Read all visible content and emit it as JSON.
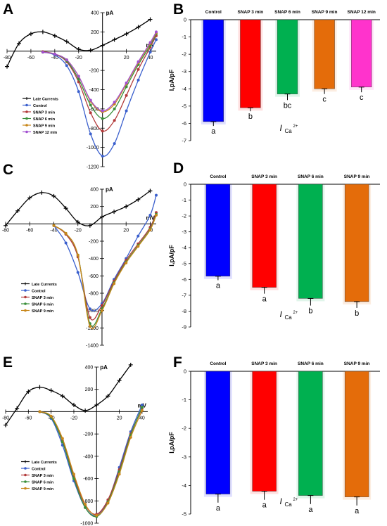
{
  "figure": {
    "panels": [
      {
        "letter": "A"
      },
      {
        "letter": "B"
      },
      {
        "letter": "C"
      },
      {
        "letter": "D"
      },
      {
        "letter": "E"
      },
      {
        "letter": "F"
      }
    ]
  },
  "colors": {
    "late": "#000000",
    "control": "#3a5fcd",
    "snap3": "#b23a3a",
    "snap6": "#3a8f3a",
    "snap9": "#c8871a",
    "snap12": "#a24fd0",
    "bar_control": "#0000ff",
    "bar_snap3": "#ff0000",
    "bar_snap6": "#00b050",
    "bar_snap9": "#e46c0a",
    "bar_snap12": "#ff33cc"
  },
  "chart_data": [
    {
      "panel": "A",
      "type": "line",
      "ylabel": "pA",
      "xlabel": "mV",
      "xlim": [
        -80,
        45
      ],
      "ylim": [
        -1200,
        400
      ],
      "xticks": [
        -80,
        -60,
        -40,
        -20,
        20,
        40
      ],
      "yticks": [
        400,
        200,
        -200,
        -400,
        -600,
        -800,
        -1000,
        -1200
      ],
      "legend": [
        "Late Currents",
        "Control",
        "SNAP 3 min",
        "SNAP 6 min",
        "SNAP 9 min",
        "SNAP 12 min"
      ],
      "series": [
        {
          "name": "Late Currents",
          "color_key": "late",
          "marker": "plus",
          "x": [
            -80,
            -70,
            -60,
            -50,
            -40,
            -30,
            -20,
            -10,
            0,
            10,
            20,
            30,
            40
          ],
          "y": [
            -160,
            80,
            180,
            200,
            160,
            100,
            20,
            10,
            60,
            120,
            180,
            250,
            330
          ]
        },
        {
          "name": "Control",
          "color_key": "control",
          "marker": "dot",
          "x": [
            -50,
            -40,
            -30,
            -20,
            -10,
            0,
            10,
            20,
            30,
            40,
            45
          ],
          "y": [
            -10,
            -40,
            -150,
            -420,
            -860,
            -1090,
            -960,
            -620,
            -300,
            -10,
            120
          ]
        },
        {
          "name": "SNAP 3 min",
          "color_key": "snap3",
          "marker": "dot",
          "x": [
            -50,
            -40,
            -30,
            -20,
            -10,
            0,
            10,
            20,
            30,
            40,
            45
          ],
          "y": [
            -5,
            -30,
            -110,
            -320,
            -640,
            -830,
            -720,
            -460,
            -190,
            40,
            160
          ]
        },
        {
          "name": "SNAP 6 min",
          "color_key": "snap6",
          "marker": "dot",
          "x": [
            -50,
            -40,
            -30,
            -20,
            -10,
            0,
            10,
            20,
            30,
            40,
            45
          ],
          "y": [
            -10,
            -30,
            -100,
            -290,
            -560,
            -700,
            -600,
            -370,
            -140,
            60,
            180
          ]
        },
        {
          "name": "SNAP 9 min",
          "color_key": "snap9",
          "marker": "dot",
          "x": [
            -50,
            -40,
            -30,
            -20,
            -10,
            0,
            10,
            20,
            30,
            40,
            45
          ],
          "y": [
            -10,
            -30,
            -90,
            -260,
            -520,
            -630,
            -550,
            -340,
            -120,
            80,
            190
          ]
        },
        {
          "name": "SNAP 12 min",
          "color_key": "snap12",
          "marker": "dot",
          "x": [
            -50,
            -40,
            -30,
            -20,
            -10,
            0,
            10,
            20,
            30,
            40,
            45
          ],
          "y": [
            -10,
            -30,
            -90,
            -260,
            -510,
            -620,
            -530,
            -330,
            -110,
            90,
            200
          ]
        }
      ]
    },
    {
      "panel": "B",
      "type": "bar",
      "ylabel": "I,pA/pF",
      "xlabel_main": "I",
      "xlabel_sub": "Ca",
      "xlabel_sup": "2+",
      "ylim": [
        -7,
        0
      ],
      "yticks": [
        0,
        -1,
        -2,
        -3,
        -4,
        -5,
        -6,
        -7
      ],
      "categories": [
        "Control",
        "SNAP 3 min",
        "SNAP 6 min",
        "SNAP 9 min",
        "SNAP 12 min"
      ],
      "values": [
        -5.9,
        -5.1,
        -4.3,
        -4.0,
        -3.9
      ],
      "errors": [
        0.25,
        0.2,
        0.35,
        0.3,
        0.3
      ],
      "sig": [
        "a",
        "b",
        "bc",
        "c",
        "c"
      ],
      "color_keys": [
        "bar_control",
        "bar_snap3",
        "bar_snap6",
        "bar_snap9",
        "bar_snap12"
      ]
    },
    {
      "panel": "C",
      "type": "line",
      "ylabel": "pA",
      "xlabel": "mV",
      "xlim": [
        -80,
        45
      ],
      "ylim": [
        -1400,
        400
      ],
      "xticks": [
        -80,
        -60,
        -40,
        -20,
        20,
        40
      ],
      "yticks": [
        400,
        200,
        -200,
        -400,
        -600,
        -800,
        -1000,
        -1200,
        -1400
      ],
      "legend": [
        "Late Currents",
        "Control",
        "SNAP 3 min",
        "SNAP 6 min",
        "SNAP 9 min"
      ],
      "series": [
        {
          "name": "Late Currents",
          "color_key": "late",
          "marker": "plus",
          "x": [
            -80,
            -70,
            -60,
            -50,
            -40,
            -30,
            -20,
            -10,
            0,
            10,
            20,
            30,
            40
          ],
          "y": [
            -20,
            150,
            300,
            360,
            320,
            180,
            20,
            -20,
            80,
            140,
            200,
            280,
            380
          ]
        },
        {
          "name": "Control",
          "color_key": "control",
          "marker": "dot",
          "x": [
            -40,
            -30,
            -20,
            -10,
            0,
            10,
            20,
            30,
            40,
            45
          ],
          "y": [
            -20,
            -220,
            -560,
            -980,
            -920,
            -640,
            -400,
            -140,
            100,
            330
          ]
        },
        {
          "name": "SNAP 3 min",
          "color_key": "snap3",
          "marker": "dot",
          "x": [
            -40,
            -30,
            -20,
            -10,
            0,
            10,
            20,
            30,
            40,
            45
          ],
          "y": [
            -20,
            -120,
            -380,
            -1080,
            -940,
            -660,
            -420,
            -230,
            -40,
            130
          ]
        },
        {
          "name": "SNAP 6 min",
          "color_key": "snap6",
          "marker": "dot",
          "x": [
            -40,
            -30,
            -20,
            -10,
            0,
            10,
            20,
            30,
            40,
            45
          ],
          "y": [
            -20,
            -110,
            -360,
            -1150,
            -980,
            -680,
            -440,
            -250,
            -60,
            110
          ]
        },
        {
          "name": "SNAP 9 min",
          "color_key": "snap9",
          "marker": "dot",
          "x": [
            -40,
            -30,
            -20,
            -10,
            0,
            10,
            20,
            30,
            40,
            45
          ],
          "y": [
            -20,
            -110,
            -360,
            -1180,
            -1000,
            -690,
            -450,
            -260,
            -70,
            100
          ]
        }
      ]
    },
    {
      "panel": "D",
      "type": "bar",
      "ylabel": "I,pA/pF",
      "xlabel_main": "I",
      "xlabel_sub": "Ca",
      "xlabel_sup": "2+",
      "ylim": [
        -9,
        0
      ],
      "yticks": [
        0,
        -1,
        -2,
        -3,
        -4,
        -5,
        -6,
        -7,
        -8,
        -9
      ],
      "categories": [
        "Control",
        "SNAP 3 min",
        "SNAP 6 min",
        "SNAP 9 min"
      ],
      "values": [
        -5.8,
        -6.5,
        -7.2,
        -7.4
      ],
      "errors": [
        0.25,
        0.4,
        0.45,
        0.4
      ],
      "sig": [
        "a",
        "a",
        "b",
        "b"
      ],
      "color_keys": [
        "bar_control",
        "bar_snap3",
        "bar_snap6",
        "bar_snap9"
      ]
    },
    {
      "panel": "E",
      "type": "line",
      "ylabel": "pA",
      "xlabel": "mV",
      "xlim": [
        -80,
        45
      ],
      "ylim": [
        -1000,
        400
      ],
      "xticks": [
        -80,
        -60,
        -40,
        -20,
        20,
        40
      ],
      "yticks": [
        400,
        200,
        -200,
        -400,
        -600,
        -800,
        -1000
      ],
      "legend": [
        "Late Currents",
        "Control",
        "SNAP 3 min",
        "SNAP 6 min",
        "SNAP 9 min"
      ],
      "series": [
        {
          "name": "Late Currents",
          "color_key": "late",
          "marker": "plus",
          "x": [
            -80,
            -70,
            -60,
            -50,
            -40,
            -30,
            -20,
            -10,
            0,
            10,
            20,
            30
          ],
          "y": [
            -120,
            30,
            180,
            220,
            190,
            140,
            60,
            10,
            60,
            140,
            280,
            420
          ]
        },
        {
          "name": "Control",
          "color_key": "control",
          "marker": "dot",
          "x": [
            -50,
            -40,
            -30,
            -20,
            -10,
            0,
            10,
            20,
            30,
            40
          ],
          "y": [
            0,
            -60,
            -300,
            -620,
            -860,
            -930,
            -800,
            -500,
            -180,
            60
          ]
        },
        {
          "name": "SNAP 3 min",
          "color_key": "snap3",
          "marker": "dot",
          "x": [
            -50,
            -40,
            -30,
            -20,
            -10,
            0,
            10,
            20,
            30,
            40
          ],
          "y": [
            0,
            -50,
            -260,
            -580,
            -840,
            -920,
            -790,
            -520,
            -200,
            30
          ]
        },
        {
          "name": "SNAP 6 min",
          "color_key": "snap6",
          "marker": "dot",
          "x": [
            -50,
            -40,
            -30,
            -20,
            -10,
            0,
            10,
            20,
            30,
            40
          ],
          "y": [
            0,
            -50,
            -270,
            -600,
            -860,
            -940,
            -810,
            -540,
            -210,
            40
          ]
        },
        {
          "name": "SNAP 9 min",
          "color_key": "snap9",
          "marker": "dot",
          "x": [
            -50,
            -40,
            -30,
            -20,
            -10,
            0,
            10,
            20,
            30,
            40
          ],
          "y": [
            0,
            -40,
            -240,
            -560,
            -830,
            -930,
            -820,
            -560,
            -230,
            10
          ]
        }
      ]
    },
    {
      "panel": "F",
      "type": "bar",
      "ylabel": "I,pA/pF",
      "xlabel_main": "I",
      "xlabel_sub": "Ca",
      "xlabel_sup": "2+",
      "ylim": [
        -5,
        0
      ],
      "yticks": [
        0,
        -1,
        -2,
        -3,
        -4,
        -5
      ],
      "categories": [
        "Control",
        "SNAP 3 min",
        "SNAP 6 min",
        "SNAP 9 min"
      ],
      "values": [
        -4.3,
        -4.2,
        -4.35,
        -4.4
      ],
      "errors": [
        0.3,
        0.3,
        0.3,
        0.3
      ],
      "sig": [
        "a",
        "a",
        "a",
        "a"
      ],
      "color_keys": [
        "bar_control",
        "bar_snap3",
        "bar_snap6",
        "bar_snap9"
      ]
    }
  ]
}
